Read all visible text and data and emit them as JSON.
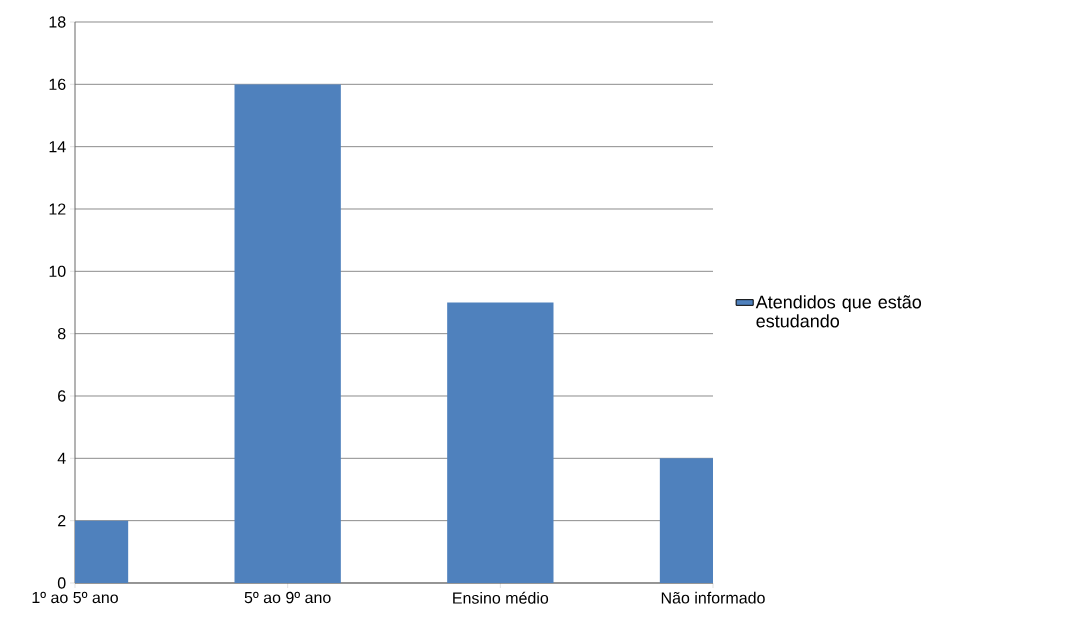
{
  "chart_data": {
    "type": "bar",
    "categories": [
      "1º ao 5º ano",
      "5º ao 9º ano",
      "Ensino médio",
      "Não informado"
    ],
    "series": [
      {
        "name": "Atendidos que estão estudando",
        "color": "#4f81bd",
        "values": [
          2,
          16,
          9,
          4
        ]
      }
    ],
    "ylim": [
      0,
      18
    ],
    "yticks": [
      0,
      2,
      4,
      6,
      8,
      10,
      12,
      14,
      16,
      18
    ],
    "grid": "y",
    "legend": "right"
  }
}
